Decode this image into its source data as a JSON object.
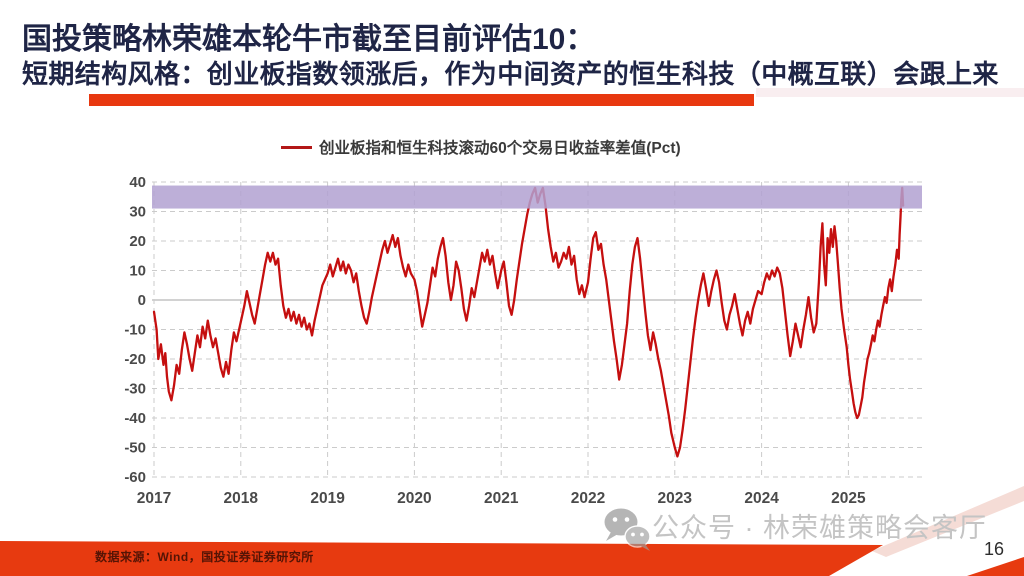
{
  "slide": {
    "title_line1": "国投策略林荣雄本轮牛市截至目前评估10：",
    "title_line2": "短期结构风格：创业板指数领涨后，作为中间资产的恒生科技（中概互联）会跟上来",
    "title_color": "#1f2546",
    "accent_bar_color": "#e8380f",
    "footer_band_color": "#e73a10",
    "footer_source": "数据来源：Wind，国投证券证券研究所",
    "watermark": "公众号 · 林荣雄策略会客厅",
    "page_number": "16"
  },
  "chart_data": {
    "type": "line",
    "legend": "创业板指和恒生科技滚动60个交易日收益率差值(Pct)",
    "legend_position": "top-center",
    "grid": "dashed",
    "ylim": [
      -60,
      40
    ],
    "y_ticks": [
      40,
      30,
      20,
      10,
      0,
      -10,
      -20,
      -30,
      -40,
      -50,
      -60
    ],
    "x_ticks": [
      2017,
      2018,
      2019,
      2020,
      2021,
      2022,
      2023,
      2024,
      2025
    ],
    "x_range": [
      2017.0,
      2025.85
    ],
    "highlight_band": {
      "from": 31,
      "to": 38.8,
      "color": "#b2a1d1"
    },
    "series": [
      {
        "name": "创业板指和恒生科技滚动60个交易日收益率差值(Pct)",
        "color": "#c50f0f",
        "points": [
          [
            2017.0,
            -4
          ],
          [
            2017.03,
            -10
          ],
          [
            2017.05,
            -20
          ],
          [
            2017.08,
            -15
          ],
          [
            2017.11,
            -22
          ],
          [
            2017.13,
            -18
          ],
          [
            2017.15,
            -26
          ],
          [
            2017.17,
            -31
          ],
          [
            2017.2,
            -34
          ],
          [
            2017.23,
            -29
          ],
          [
            2017.26,
            -22
          ],
          [
            2017.29,
            -25
          ],
          [
            2017.32,
            -17
          ],
          [
            2017.35,
            -11
          ],
          [
            2017.38,
            -15
          ],
          [
            2017.41,
            -20
          ],
          [
            2017.44,
            -24
          ],
          [
            2017.47,
            -18
          ],
          [
            2017.5,
            -12
          ],
          [
            2017.53,
            -16
          ],
          [
            2017.56,
            -9
          ],
          [
            2017.59,
            -13
          ],
          [
            2017.62,
            -7
          ],
          [
            2017.65,
            -12
          ],
          [
            2017.68,
            -16
          ],
          [
            2017.71,
            -13
          ],
          [
            2017.74,
            -18
          ],
          [
            2017.77,
            -23
          ],
          [
            2017.8,
            -26
          ],
          [
            2017.83,
            -21
          ],
          [
            2017.86,
            -25
          ],
          [
            2017.89,
            -17
          ],
          [
            2017.92,
            -11
          ],
          [
            2017.95,
            -14
          ],
          [
            2017.98,
            -10
          ],
          [
            2018.01,
            -6
          ],
          [
            2018.04,
            -2
          ],
          [
            2018.07,
            3
          ],
          [
            2018.1,
            -1
          ],
          [
            2018.13,
            -5
          ],
          [
            2018.16,
            -8
          ],
          [
            2018.19,
            -3
          ],
          [
            2018.22,
            2
          ],
          [
            2018.25,
            7
          ],
          [
            2018.28,
            12
          ],
          [
            2018.31,
            16
          ],
          [
            2018.34,
            13
          ],
          [
            2018.37,
            16
          ],
          [
            2018.4,
            12
          ],
          [
            2018.43,
            14
          ],
          [
            2018.46,
            5
          ],
          [
            2018.49,
            -2
          ],
          [
            2018.52,
            -6
          ],
          [
            2018.55,
            -3
          ],
          [
            2018.58,
            -7
          ],
          [
            2018.61,
            -4
          ],
          [
            2018.64,
            -8
          ],
          [
            2018.67,
            -5
          ],
          [
            2018.7,
            -9
          ],
          [
            2018.73,
            -6
          ],
          [
            2018.76,
            -10
          ],
          [
            2018.79,
            -8
          ],
          [
            2018.82,
            -12
          ],
          [
            2018.85,
            -7
          ],
          [
            2018.88,
            -3
          ],
          [
            2018.91,
            1
          ],
          [
            2018.94,
            5
          ],
          [
            2018.97,
            7
          ],
          [
            2019.0,
            9
          ],
          [
            2019.03,
            12
          ],
          [
            2019.06,
            8
          ],
          [
            2019.09,
            11
          ],
          [
            2019.12,
            14
          ],
          [
            2019.15,
            10
          ],
          [
            2019.18,
            13
          ],
          [
            2019.21,
            9
          ],
          [
            2019.24,
            12
          ],
          [
            2019.27,
            10
          ],
          [
            2019.3,
            6
          ],
          [
            2019.33,
            9
          ],
          [
            2019.36,
            3
          ],
          [
            2019.39,
            -2
          ],
          [
            2019.42,
            -6
          ],
          [
            2019.45,
            -8
          ],
          [
            2019.48,
            -4
          ],
          [
            2019.51,
            1
          ],
          [
            2019.54,
            5
          ],
          [
            2019.57,
            9
          ],
          [
            2019.6,
            13
          ],
          [
            2019.63,
            17
          ],
          [
            2019.66,
            20
          ],
          [
            2019.69,
            16
          ],
          [
            2019.72,
            19
          ],
          [
            2019.75,
            22
          ],
          [
            2019.78,
            18
          ],
          [
            2019.81,
            21
          ],
          [
            2019.84,
            15
          ],
          [
            2019.87,
            11
          ],
          [
            2019.9,
            8
          ],
          [
            2019.93,
            12
          ],
          [
            2019.96,
            9
          ],
          [
            2020.0,
            7
          ],
          [
            2020.03,
            3
          ],
          [
            2020.06,
            -3
          ],
          [
            2020.09,
            -9
          ],
          [
            2020.12,
            -5
          ],
          [
            2020.15,
            -1
          ],
          [
            2020.18,
            5
          ],
          [
            2020.21,
            11
          ],
          [
            2020.24,
            8
          ],
          [
            2020.27,
            14
          ],
          [
            2020.3,
            18
          ],
          [
            2020.33,
            21
          ],
          [
            2020.36,
            15
          ],
          [
            2020.39,
            6
          ],
          [
            2020.42,
            0
          ],
          [
            2020.45,
            5
          ],
          [
            2020.48,
            13
          ],
          [
            2020.51,
            10
          ],
          [
            2020.54,
            4
          ],
          [
            2020.57,
            -3
          ],
          [
            2020.6,
            -7
          ],
          [
            2020.63,
            -2
          ],
          [
            2020.66,
            4
          ],
          [
            2020.69,
            1
          ],
          [
            2020.72,
            6
          ],
          [
            2020.75,
            11
          ],
          [
            2020.78,
            16
          ],
          [
            2020.81,
            13
          ],
          [
            2020.84,
            17
          ],
          [
            2020.87,
            12
          ],
          [
            2020.9,
            15
          ],
          [
            2020.93,
            9
          ],
          [
            2020.96,
            4
          ],
          [
            2021.0,
            10
          ],
          [
            2021.03,
            13
          ],
          [
            2021.06,
            6
          ],
          [
            2021.09,
            -2
          ],
          [
            2021.12,
            -5
          ],
          [
            2021.15,
            0
          ],
          [
            2021.18,
            7
          ],
          [
            2021.21,
            13
          ],
          [
            2021.24,
            19
          ],
          [
            2021.27,
            24
          ],
          [
            2021.3,
            29
          ],
          [
            2021.33,
            33
          ],
          [
            2021.36,
            36
          ],
          [
            2021.39,
            38
          ],
          [
            2021.42,
            33
          ],
          [
            2021.45,
            36
          ],
          [
            2021.48,
            38
          ],
          [
            2021.51,
            32
          ],
          [
            2021.54,
            24
          ],
          [
            2021.57,
            18
          ],
          [
            2021.6,
            13
          ],
          [
            2021.63,
            16
          ],
          [
            2021.66,
            11
          ],
          [
            2021.69,
            13
          ],
          [
            2021.72,
            16
          ],
          [
            2021.75,
            14
          ],
          [
            2021.78,
            18
          ],
          [
            2021.81,
            12
          ],
          [
            2021.84,
            15
          ],
          [
            2021.87,
            7
          ],
          [
            2021.9,
            2
          ],
          [
            2021.93,
            5
          ],
          [
            2021.96,
            1
          ],
          [
            2022.0,
            6
          ],
          [
            2022.03,
            14
          ],
          [
            2022.06,
            21
          ],
          [
            2022.09,
            23
          ],
          [
            2022.12,
            17
          ],
          [
            2022.15,
            19
          ],
          [
            2022.18,
            12
          ],
          [
            2022.21,
            7
          ],
          [
            2022.24,
            0
          ],
          [
            2022.27,
            -7
          ],
          [
            2022.3,
            -14
          ],
          [
            2022.33,
            -20
          ],
          [
            2022.36,
            -27
          ],
          [
            2022.39,
            -22
          ],
          [
            2022.42,
            -15
          ],
          [
            2022.45,
            -8
          ],
          [
            2022.48,
            3
          ],
          [
            2022.51,
            12
          ],
          [
            2022.54,
            18
          ],
          [
            2022.57,
            21
          ],
          [
            2022.6,
            14
          ],
          [
            2022.63,
            5
          ],
          [
            2022.66,
            -4
          ],
          [
            2022.69,
            -12
          ],
          [
            2022.72,
            -17
          ],
          [
            2022.75,
            -11
          ],
          [
            2022.78,
            -15
          ],
          [
            2022.81,
            -20
          ],
          [
            2022.84,
            -24
          ],
          [
            2022.87,
            -29
          ],
          [
            2022.9,
            -34
          ],
          [
            2022.93,
            -39
          ],
          [
            2022.96,
            -45
          ],
          [
            2023.0,
            -50
          ],
          [
            2023.03,
            -53
          ],
          [
            2023.06,
            -50
          ],
          [
            2023.09,
            -44
          ],
          [
            2023.12,
            -37
          ],
          [
            2023.15,
            -29
          ],
          [
            2023.18,
            -21
          ],
          [
            2023.21,
            -13
          ],
          [
            2023.24,
            -6
          ],
          [
            2023.27,
            0
          ],
          [
            2023.3,
            5
          ],
          [
            2023.33,
            9
          ],
          [
            2023.36,
            4
          ],
          [
            2023.39,
            -2
          ],
          [
            2023.42,
            3
          ],
          [
            2023.45,
            7
          ],
          [
            2023.48,
            10
          ],
          [
            2023.51,
            6
          ],
          [
            2023.54,
            -1
          ],
          [
            2023.57,
            -7
          ],
          [
            2023.6,
            -10
          ],
          [
            2023.63,
            -5
          ],
          [
            2023.66,
            -2
          ],
          [
            2023.69,
            2
          ],
          [
            2023.72,
            -3
          ],
          [
            2023.75,
            -8
          ],
          [
            2023.78,
            -12
          ],
          [
            2023.81,
            -7
          ],
          [
            2023.84,
            -4
          ],
          [
            2023.87,
            -8
          ],
          [
            2023.9,
            -3
          ],
          [
            2023.93,
            0
          ],
          [
            2023.96,
            3
          ],
          [
            2024.0,
            2
          ],
          [
            2024.03,
            6
          ],
          [
            2024.06,
            9
          ],
          [
            2024.09,
            7
          ],
          [
            2024.12,
            10
          ],
          [
            2024.15,
            8
          ],
          [
            2024.18,
            11
          ],
          [
            2024.21,
            9
          ],
          [
            2024.24,
            4
          ],
          [
            2024.27,
            -4
          ],
          [
            2024.3,
            -12
          ],
          [
            2024.33,
            -19
          ],
          [
            2024.36,
            -14
          ],
          [
            2024.39,
            -8
          ],
          [
            2024.42,
            -12
          ],
          [
            2024.45,
            -16
          ],
          [
            2024.48,
            -10
          ],
          [
            2024.51,
            -5
          ],
          [
            2024.54,
            1
          ],
          [
            2024.57,
            -6
          ],
          [
            2024.6,
            -11
          ],
          [
            2024.63,
            -8
          ],
          [
            2024.66,
            6
          ],
          [
            2024.68,
            18
          ],
          [
            2024.7,
            26
          ],
          [
            2024.72,
            12
          ],
          [
            2024.74,
            5
          ],
          [
            2024.76,
            21
          ],
          [
            2024.78,
            16
          ],
          [
            2024.8,
            24
          ],
          [
            2024.82,
            18
          ],
          [
            2024.84,
            25
          ],
          [
            2024.86,
            20
          ],
          [
            2024.88,
            12
          ],
          [
            2024.9,
            4
          ],
          [
            2024.92,
            -3
          ],
          [
            2024.95,
            -10
          ],
          [
            2024.98,
            -16
          ],
          [
            2025.0,
            -22
          ],
          [
            2025.02,
            -27
          ],
          [
            2025.04,
            -31
          ],
          [
            2025.06,
            -35
          ],
          [
            2025.08,
            -38
          ],
          [
            2025.1,
            -40
          ],
          [
            2025.12,
            -39
          ],
          [
            2025.14,
            -36
          ],
          [
            2025.16,
            -33
          ],
          [
            2025.18,
            -28
          ],
          [
            2025.2,
            -24
          ],
          [
            2025.22,
            -20
          ],
          [
            2025.24,
            -18
          ],
          [
            2025.26,
            -15
          ],
          [
            2025.28,
            -12
          ],
          [
            2025.3,
            -14
          ],
          [
            2025.32,
            -10
          ],
          [
            2025.34,
            -7
          ],
          [
            2025.36,
            -9
          ],
          [
            2025.38,
            -5
          ],
          [
            2025.4,
            -2
          ],
          [
            2025.42,
            1
          ],
          [
            2025.44,
            -1
          ],
          [
            2025.46,
            4
          ],
          [
            2025.48,
            7
          ],
          [
            2025.5,
            3
          ],
          [
            2025.52,
            8
          ],
          [
            2025.54,
            12
          ],
          [
            2025.56,
            17
          ],
          [
            2025.58,
            14
          ],
          [
            2025.59,
            22
          ],
          [
            2025.6,
            28
          ],
          [
            2025.61,
            34
          ],
          [
            2025.62,
            38
          ],
          [
            2025.63,
            32
          ]
        ]
      }
    ]
  }
}
